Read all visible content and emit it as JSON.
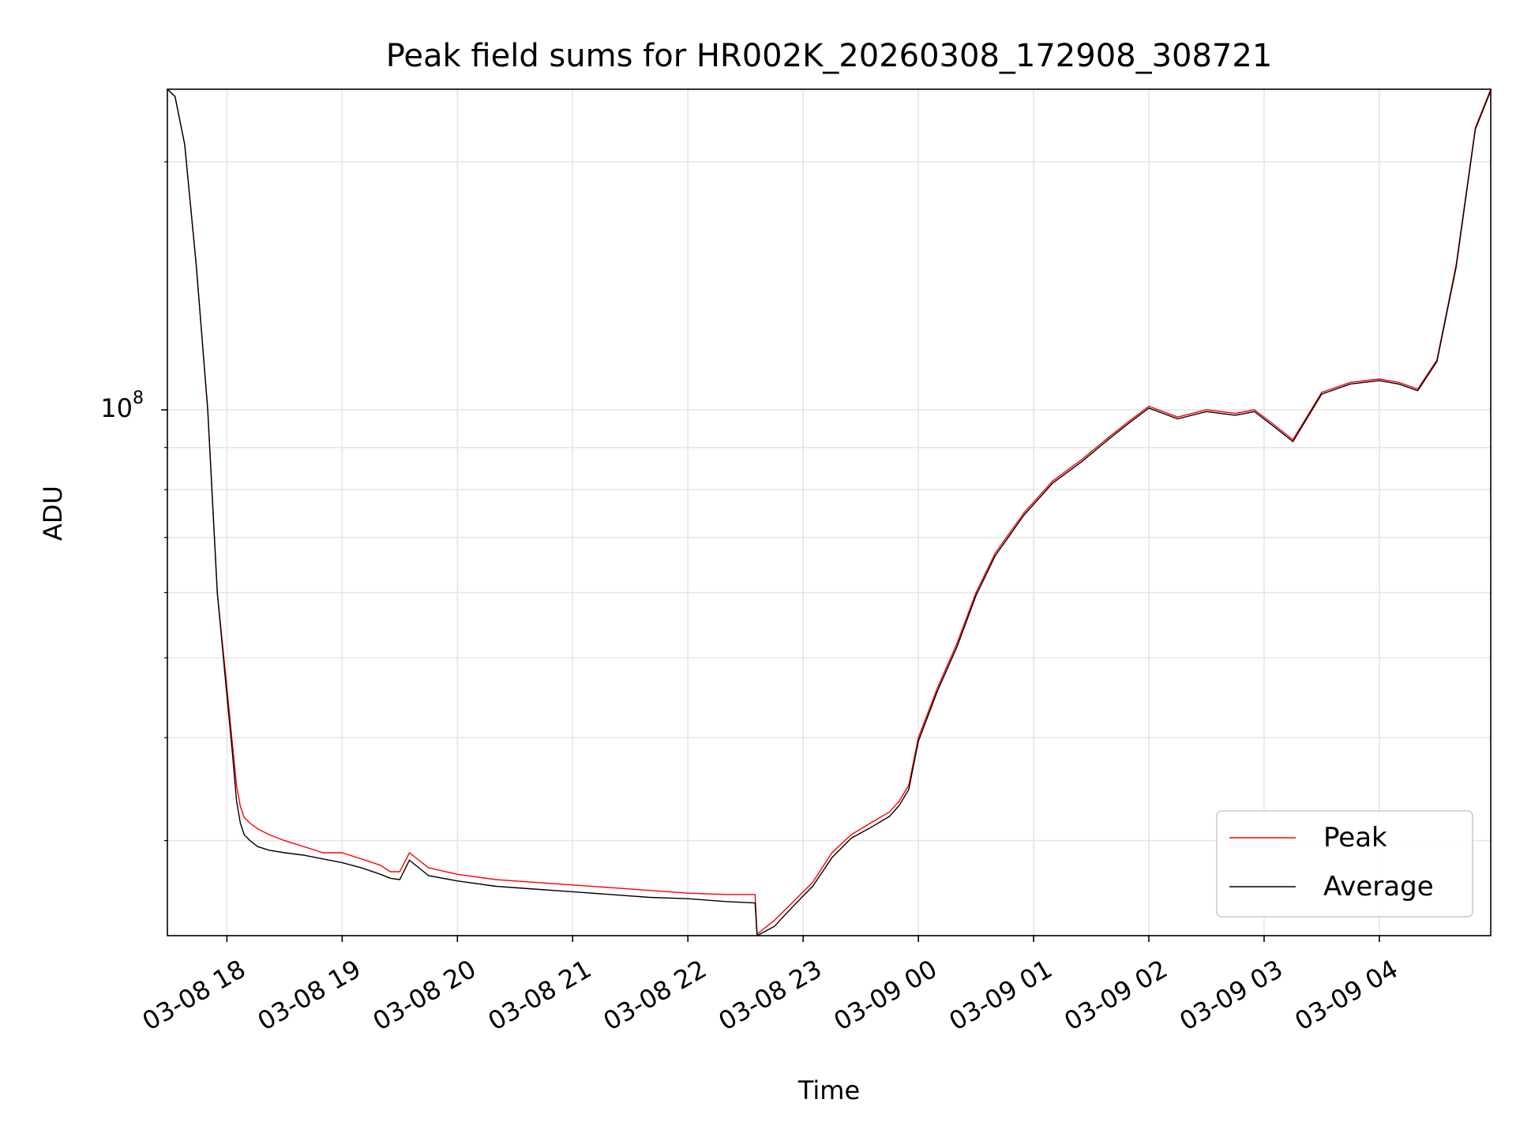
{
  "chart_data": {
    "type": "line",
    "title": "Peak field sums for HR002K_20260308_172908_308721",
    "xlabel": "Time",
    "ylabel": "ADU",
    "y_scale": "log",
    "ylim": [
      23000000,
      245000000
    ],
    "xlim": [
      "2026-03-08 17:29",
      "2026-03-09 04:58"
    ],
    "grid": true,
    "legend_position": "lower right",
    "x_tick_labels": [
      "03-08 18",
      "03-08 19",
      "03-08 20",
      "03-08 21",
      "03-08 22",
      "03-08 23",
      "03-09 00",
      "03-09 01",
      "03-09 02",
      "03-09 03",
      "03-09 04"
    ],
    "x_ticks": [
      "2026-03-08 18:00",
      "2026-03-08 19:00",
      "2026-03-08 20:00",
      "2026-03-08 21:00",
      "2026-03-08 22:00",
      "2026-03-08 23:00",
      "2026-03-09 00:00",
      "2026-03-09 01:00",
      "2026-03-09 02:00",
      "2026-03-09 03:00",
      "2026-03-09 04:00"
    ],
    "y_tick_label": "10",
    "y_tick_exponent": "8",
    "y_tick_value": 100000000,
    "series": [
      {
        "name": "Peak",
        "color": "#ff0000",
        "x": [
          "2026-03-08 17:29",
          "2026-03-08 17:33",
          "2026-03-08 17:38",
          "2026-03-08 17:44",
          "2026-03-08 17:50",
          "2026-03-08 17:55",
          "2026-03-08 18:00",
          "2026-03-08 18:03",
          "2026-03-08 18:05",
          "2026-03-08 18:07",
          "2026-03-08 18:09",
          "2026-03-08 18:12",
          "2026-03-08 18:16",
          "2026-03-08 18:22",
          "2026-03-08 18:30",
          "2026-03-08 18:40",
          "2026-03-08 18:50",
          "2026-03-08 19:00",
          "2026-03-08 19:10",
          "2026-03-08 19:20",
          "2026-03-08 19:25",
          "2026-03-08 19:30",
          "2026-03-08 19:35",
          "2026-03-08 19:45",
          "2026-03-08 20:00",
          "2026-03-08 20:20",
          "2026-03-08 20:40",
          "2026-03-08 21:00",
          "2026-03-08 21:20",
          "2026-03-08 21:40",
          "2026-03-08 22:00",
          "2026-03-08 22:20",
          "2026-03-08 22:35",
          "2026-03-08 22:36",
          "2026-03-08 22:45",
          "2026-03-08 22:55",
          "2026-03-08 23:05",
          "2026-03-08 23:15",
          "2026-03-08 23:25",
          "2026-03-08 23:35",
          "2026-03-08 23:45",
          "2026-03-08 23:50",
          "2026-03-08 23:55",
          "2026-03-09 00:00",
          "2026-03-09 00:10",
          "2026-03-09 00:20",
          "2026-03-09 00:30",
          "2026-03-09 00:40",
          "2026-03-09 00:55",
          "2026-03-09 01:10",
          "2026-03-09 01:25",
          "2026-03-09 01:40",
          "2026-03-09 01:50",
          "2026-03-09 02:00",
          "2026-03-09 02:15",
          "2026-03-09 02:30",
          "2026-03-09 02:45",
          "2026-03-09 02:55",
          "2026-03-09 03:05",
          "2026-03-09 03:15",
          "2026-03-09 03:30",
          "2026-03-09 03:45",
          "2026-03-09 04:00",
          "2026-03-09 04:10",
          "2026-03-09 04:20",
          "2026-03-09 04:30",
          "2026-03-09 04:40",
          "2026-03-09 04:50",
          "2026-03-09 04:58"
        ],
        "y": [
          245000000,
          240000000,
          210000000,
          150000000,
          100000000,
          60000000,
          46000000,
          39000000,
          35000000,
          33000000,
          32000000,
          31500000,
          31000000,
          30500000,
          30000000,
          29500000,
          29000000,
          29000000,
          28500000,
          28000000,
          27500000,
          27500000,
          29000000,
          27800000,
          27300000,
          26900000,
          26700000,
          26500000,
          26300000,
          26100000,
          25900000,
          25800000,
          25800000,
          23100000,
          24000000,
          25300000,
          26700000,
          29000000,
          30500000,
          31500000,
          32500000,
          33500000,
          35000000,
          40000000,
          46000000,
          52000000,
          60000000,
          67000000,
          75000000,
          82000000,
          87000000,
          93000000,
          97000000,
          101000000,
          98000000,
          100000000,
          99000000,
          100000000,
          96000000,
          92000000,
          105000000,
          108000000,
          109000000,
          108000000,
          106000000,
          115000000,
          150000000,
          220000000,
          245000000
        ]
      },
      {
        "name": "Average",
        "color": "#000000",
        "x": [
          "2026-03-08 17:29",
          "2026-03-08 17:33",
          "2026-03-08 17:38",
          "2026-03-08 17:44",
          "2026-03-08 17:50",
          "2026-03-08 17:55",
          "2026-03-08 18:00",
          "2026-03-08 18:03",
          "2026-03-08 18:05",
          "2026-03-08 18:07",
          "2026-03-08 18:09",
          "2026-03-08 18:12",
          "2026-03-08 18:16",
          "2026-03-08 18:22",
          "2026-03-08 18:30",
          "2026-03-08 18:40",
          "2026-03-08 18:50",
          "2026-03-08 19:00",
          "2026-03-08 19:10",
          "2026-03-08 19:20",
          "2026-03-08 19:25",
          "2026-03-08 19:30",
          "2026-03-08 19:35",
          "2026-03-08 19:45",
          "2026-03-08 20:00",
          "2026-03-08 20:20",
          "2026-03-08 20:40",
          "2026-03-08 21:00",
          "2026-03-08 21:20",
          "2026-03-08 21:40",
          "2026-03-08 22:00",
          "2026-03-08 22:20",
          "2026-03-08 22:35",
          "2026-03-08 22:36",
          "2026-03-08 22:45",
          "2026-03-08 22:55",
          "2026-03-08 23:05",
          "2026-03-08 23:15",
          "2026-03-08 23:25",
          "2026-03-08 23:35",
          "2026-03-08 23:45",
          "2026-03-08 23:50",
          "2026-03-08 23:55",
          "2026-03-09 00:00",
          "2026-03-09 00:10",
          "2026-03-09 00:20",
          "2026-03-09 00:30",
          "2026-03-09 00:40",
          "2026-03-09 00:55",
          "2026-03-09 01:10",
          "2026-03-09 01:25",
          "2026-03-09 01:40",
          "2026-03-09 01:50",
          "2026-03-09 02:00",
          "2026-03-09 02:15",
          "2026-03-09 02:30",
          "2026-03-09 02:45",
          "2026-03-09 02:55",
          "2026-03-09 03:05",
          "2026-03-09 03:15",
          "2026-03-09 03:30",
          "2026-03-09 03:45",
          "2026-03-09 04:00",
          "2026-03-09 04:10",
          "2026-03-09 04:20",
          "2026-03-09 04:30",
          "2026-03-09 04:40",
          "2026-03-09 04:50",
          "2026-03-09 04:58"
        ],
        "y": [
          245000000,
          240000000,
          210000000,
          150000000,
          100000000,
          60000000,
          45000000,
          38000000,
          33500000,
          31500000,
          30500000,
          30000000,
          29500000,
          29200000,
          29000000,
          28800000,
          28500000,
          28200000,
          27800000,
          27300000,
          27000000,
          26900000,
          28400000,
          27200000,
          26800000,
          26400000,
          26200000,
          26000000,
          25800000,
          25600000,
          25500000,
          25300000,
          25200000,
          22800000,
          23600000,
          25000000,
          26400000,
          28600000,
          30200000,
          31100000,
          32100000,
          33100000,
          34600000,
          39600000,
          45600000,
          51500000,
          59500000,
          66500000,
          74500000,
          81500000,
          86500000,
          92500000,
          96500000,
          100500000,
          97500000,
          99500000,
          98500000,
          99500000,
          95500000,
          91500000,
          104500000,
          107500000,
          108500000,
          107500000,
          105500000,
          114500000,
          149000000,
          219000000,
          244000000
        ]
      }
    ]
  }
}
